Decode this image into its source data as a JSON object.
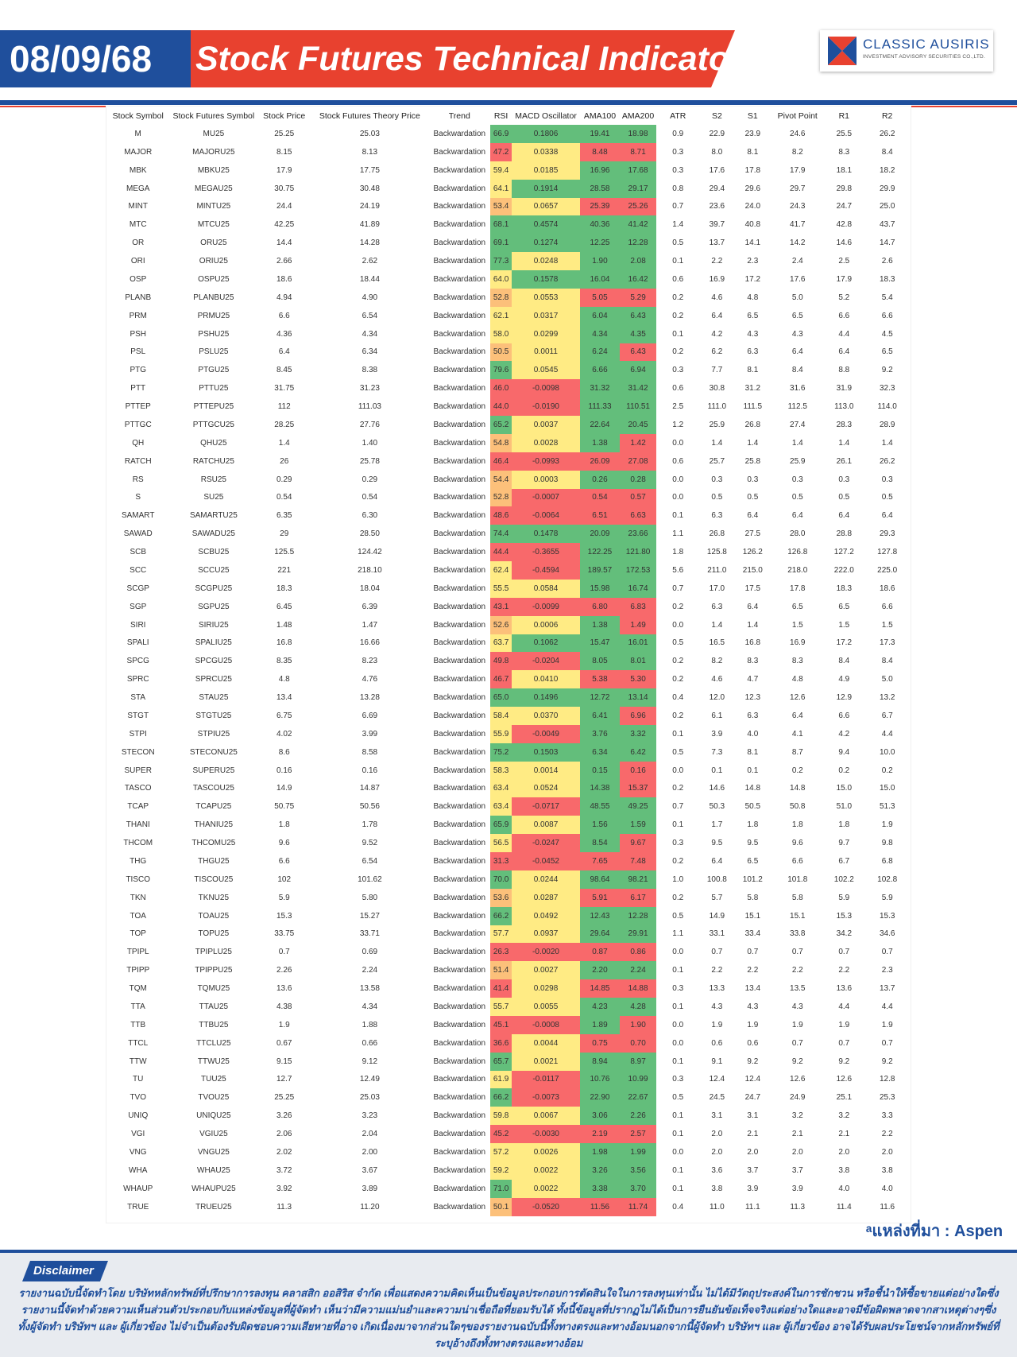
{
  "header": {
    "date": "08/09/68",
    "title": "Stock Futures Technical Indicator",
    "logo_name": "CLASSIC AUSIRIS",
    "logo_sub": "INVESTMENT ADVISORY SECURITIES CO.,LTD.",
    "colors": {
      "blue": "#1f4f9c",
      "red": "#e8412f"
    }
  },
  "table": {
    "columns": [
      "Stock Symbol",
      "Stock Futures Symbol",
      "Stock Price",
      "Stock Futures Theory Price",
      "Trend",
      "RSI",
      "MACD Oscillator",
      "AMA100",
      "AMA200",
      "ATR",
      "S2",
      "S1",
      "Pivot Point",
      "R1",
      "R2"
    ],
    "rows": [
      [
        "M",
        "MU25",
        "25.25",
        "25.03",
        "Backwardation",
        "66.9",
        "0.1806",
        "19.41",
        "18.98",
        "0.9",
        "22.9",
        "23.9",
        "24.6",
        "25.5",
        "26.2"
      ],
      [
        "MAJOR",
        "MAJORU25",
        "8.15",
        "8.13",
        "Backwardation",
        "47.2",
        "0.0338",
        "8.48",
        "8.71",
        "0.3",
        "8.0",
        "8.1",
        "8.2",
        "8.3",
        "8.4"
      ],
      [
        "MBK",
        "MBKU25",
        "17.9",
        "17.75",
        "Backwardation",
        "59.4",
        "0.0185",
        "16.96",
        "17.68",
        "0.3",
        "17.6",
        "17.8",
        "17.9",
        "18.1",
        "18.2"
      ],
      [
        "MEGA",
        "MEGAU25",
        "30.75",
        "30.48",
        "Backwardation",
        "64.1",
        "0.1914",
        "28.58",
        "29.17",
        "0.8",
        "29.4",
        "29.6",
        "29.7",
        "29.8",
        "29.9"
      ],
      [
        "MINT",
        "MINTU25",
        "24.4",
        "24.19",
        "Backwardation",
        "53.4",
        "0.0657",
        "25.39",
        "25.26",
        "0.7",
        "23.6",
        "24.0",
        "24.3",
        "24.7",
        "25.0"
      ],
      [
        "MTC",
        "MTCU25",
        "42.25",
        "41.89",
        "Backwardation",
        "68.1",
        "0.4574",
        "40.36",
        "41.42",
        "1.4",
        "39.7",
        "40.8",
        "41.7",
        "42.8",
        "43.7"
      ],
      [
        "OR",
        "ORU25",
        "14.4",
        "14.28",
        "Backwardation",
        "69.1",
        "0.1274",
        "12.25",
        "12.28",
        "0.5",
        "13.7",
        "14.1",
        "14.2",
        "14.6",
        "14.7"
      ],
      [
        "ORI",
        "ORIU25",
        "2.66",
        "2.62",
        "Backwardation",
        "77.3",
        "0.0248",
        "1.90",
        "2.08",
        "0.1",
        "2.2",
        "2.3",
        "2.4",
        "2.5",
        "2.6"
      ],
      [
        "OSP",
        "OSPU25",
        "18.6",
        "18.44",
        "Backwardation",
        "64.0",
        "0.1578",
        "16.04",
        "16.42",
        "0.6",
        "16.9",
        "17.2",
        "17.6",
        "17.9",
        "18.3"
      ],
      [
        "PLANB",
        "PLANBU25",
        "4.94",
        "4.90",
        "Backwardation",
        "52.8",
        "0.0553",
        "5.05",
        "5.29",
        "0.2",
        "4.6",
        "4.8",
        "5.0",
        "5.2",
        "5.4"
      ],
      [
        "PRM",
        "PRMU25",
        "6.6",
        "6.54",
        "Backwardation",
        "62.1",
        "0.0317",
        "6.04",
        "6.43",
        "0.2",
        "6.4",
        "6.5",
        "6.5",
        "6.6",
        "6.6"
      ],
      [
        "PSH",
        "PSHU25",
        "4.36",
        "4.34",
        "Backwardation",
        "58.0",
        "0.0299",
        "4.34",
        "4.35",
        "0.1",
        "4.2",
        "4.3",
        "4.3",
        "4.4",
        "4.5"
      ],
      [
        "PSL",
        "PSLU25",
        "6.4",
        "6.34",
        "Backwardation",
        "50.5",
        "0.0011",
        "6.24",
        "6.43",
        "0.2",
        "6.2",
        "6.3",
        "6.4",
        "6.4",
        "6.5"
      ],
      [
        "PTG",
        "PTGU25",
        "8.45",
        "8.38",
        "Backwardation",
        "79.6",
        "0.0545",
        "6.66",
        "6.94",
        "0.3",
        "7.7",
        "8.1",
        "8.4",
        "8.8",
        "9.2"
      ],
      [
        "PTT",
        "PTTU25",
        "31.75",
        "31.23",
        "Backwardation",
        "46.0",
        "-0.0098",
        "31.32",
        "31.42",
        "0.6",
        "30.8",
        "31.2",
        "31.6",
        "31.9",
        "32.3"
      ],
      [
        "PTTEP",
        "PTTEPU25",
        "112",
        "111.03",
        "Backwardation",
        "44.0",
        "-0.0190",
        "111.33",
        "110.51",
        "2.5",
        "111.0",
        "111.5",
        "112.5",
        "113.0",
        "114.0"
      ],
      [
        "PTTGC",
        "PTTGCU25",
        "28.25",
        "27.76",
        "Backwardation",
        "65.2",
        "0.0037",
        "22.64",
        "20.45",
        "1.2",
        "25.9",
        "26.8",
        "27.4",
        "28.3",
        "28.9"
      ],
      [
        "QH",
        "QHU25",
        "1.4",
        "1.40",
        "Backwardation",
        "54.8",
        "0.0028",
        "1.38",
        "1.42",
        "0.0",
        "1.4",
        "1.4",
        "1.4",
        "1.4",
        "1.4"
      ],
      [
        "RATCH",
        "RATCHU25",
        "26",
        "25.78",
        "Backwardation",
        "46.4",
        "-0.0993",
        "26.09",
        "27.08",
        "0.6",
        "25.7",
        "25.8",
        "25.9",
        "26.1",
        "26.2"
      ],
      [
        "RS",
        "RSU25",
        "0.29",
        "0.29",
        "Backwardation",
        "54.4",
        "0.0003",
        "0.26",
        "0.28",
        "0.0",
        "0.3",
        "0.3",
        "0.3",
        "0.3",
        "0.3"
      ],
      [
        "S",
        "SU25",
        "0.54",
        "0.54",
        "Backwardation",
        "52.8",
        "-0.0007",
        "0.54",
        "0.57",
        "0.0",
        "0.5",
        "0.5",
        "0.5",
        "0.5",
        "0.5"
      ],
      [
        "SAMART",
        "SAMARTU25",
        "6.35",
        "6.30",
        "Backwardation",
        "48.6",
        "-0.0064",
        "6.51",
        "6.63",
        "0.1",
        "6.3",
        "6.4",
        "6.4",
        "6.4",
        "6.4"
      ],
      [
        "SAWAD",
        "SAWADU25",
        "29",
        "28.50",
        "Backwardation",
        "74.4",
        "0.1478",
        "20.09",
        "23.66",
        "1.1",
        "26.8",
        "27.5",
        "28.0",
        "28.8",
        "29.3"
      ],
      [
        "SCB",
        "SCBU25",
        "125.5",
        "124.42",
        "Backwardation",
        "44.4",
        "-0.3655",
        "122.25",
        "121.80",
        "1.8",
        "125.8",
        "126.2",
        "126.8",
        "127.2",
        "127.8"
      ],
      [
        "SCC",
        "SCCU25",
        "221",
        "218.10",
        "Backwardation",
        "62.4",
        "-0.4594",
        "189.57",
        "172.53",
        "5.6",
        "211.0",
        "215.0",
        "218.0",
        "222.0",
        "225.0"
      ],
      [
        "SCGP",
        "SCGPU25",
        "18.3",
        "18.04",
        "Backwardation",
        "55.5",
        "0.0584",
        "15.98",
        "16.74",
        "0.7",
        "17.0",
        "17.5",
        "17.8",
        "18.3",
        "18.6"
      ],
      [
        "SGP",
        "SGPU25",
        "6.45",
        "6.39",
        "Backwardation",
        "43.1",
        "-0.0099",
        "6.80",
        "6.83",
        "0.2",
        "6.3",
        "6.4",
        "6.5",
        "6.5",
        "6.6"
      ],
      [
        "SIRI",
        "SIRIU25",
        "1.48",
        "1.47",
        "Backwardation",
        "52.6",
        "0.0006",
        "1.38",
        "1.49",
        "0.0",
        "1.4",
        "1.4",
        "1.5",
        "1.5",
        "1.5"
      ],
      [
        "SPALI",
        "SPALIU25",
        "16.8",
        "16.66",
        "Backwardation",
        "63.7",
        "0.1062",
        "15.47",
        "16.01",
        "0.5",
        "16.5",
        "16.8",
        "16.9",
        "17.2",
        "17.3"
      ],
      [
        "SPCG",
        "SPCGU25",
        "8.35",
        "8.23",
        "Backwardation",
        "49.8",
        "-0.0204",
        "8.05",
        "8.01",
        "0.2",
        "8.2",
        "8.3",
        "8.3",
        "8.4",
        "8.4"
      ],
      [
        "SPRC",
        "SPRCU25",
        "4.8",
        "4.76",
        "Backwardation",
        "46.7",
        "0.0410",
        "5.38",
        "5.30",
        "0.2",
        "4.6",
        "4.7",
        "4.8",
        "4.9",
        "5.0"
      ],
      [
        "STA",
        "STAU25",
        "13.4",
        "13.28",
        "Backwardation",
        "65.0",
        "0.1496",
        "12.72",
        "13.14",
        "0.4",
        "12.0",
        "12.3",
        "12.6",
        "12.9",
        "13.2"
      ],
      [
        "STGT",
        "STGTU25",
        "6.75",
        "6.69",
        "Backwardation",
        "58.4",
        "0.0370",
        "6.41",
        "6.96",
        "0.2",
        "6.1",
        "6.3",
        "6.4",
        "6.6",
        "6.7"
      ],
      [
        "STPI",
        "STPIU25",
        "4.02",
        "3.99",
        "Backwardation",
        "55.9",
        "-0.0049",
        "3.76",
        "3.32",
        "0.1",
        "3.9",
        "4.0",
        "4.1",
        "4.2",
        "4.4"
      ],
      [
        "STECON",
        "STECONU25",
        "8.6",
        "8.58",
        "Backwardation",
        "75.2",
        "0.1503",
        "6.34",
        "6.42",
        "0.5",
        "7.3",
        "8.1",
        "8.7",
        "9.4",
        "10.0"
      ],
      [
        "SUPER",
        "SUPERU25",
        "0.16",
        "0.16",
        "Backwardation",
        "58.3",
        "0.0014",
        "0.15",
        "0.16",
        "0.0",
        "0.1",
        "0.1",
        "0.2",
        "0.2",
        "0.2"
      ],
      [
        "TASCO",
        "TASCOU25",
        "14.9",
        "14.87",
        "Backwardation",
        "63.4",
        "0.0524",
        "14.38",
        "15.37",
        "0.2",
        "14.6",
        "14.8",
        "14.8",
        "15.0",
        "15.0"
      ],
      [
        "TCAP",
        "TCAPU25",
        "50.75",
        "50.56",
        "Backwardation",
        "63.4",
        "-0.0717",
        "48.55",
        "49.25",
        "0.7",
        "50.3",
        "50.5",
        "50.8",
        "51.0",
        "51.3"
      ],
      [
        "THANI",
        "THANIU25",
        "1.8",
        "1.78",
        "Backwardation",
        "65.9",
        "0.0087",
        "1.56",
        "1.59",
        "0.1",
        "1.7",
        "1.8",
        "1.8",
        "1.8",
        "1.9"
      ],
      [
        "THCOM",
        "THCOMU25",
        "9.6",
        "9.52",
        "Backwardation",
        "56.5",
        "-0.0247",
        "8.54",
        "9.67",
        "0.3",
        "9.5",
        "9.5",
        "9.6",
        "9.7",
        "9.8"
      ],
      [
        "THG",
        "THGU25",
        "6.6",
        "6.54",
        "Backwardation",
        "31.3",
        "-0.0452",
        "7.65",
        "7.48",
        "0.2",
        "6.4",
        "6.5",
        "6.6",
        "6.7",
        "6.8"
      ],
      [
        "TISCO",
        "TISCOU25",
        "102",
        "101.62",
        "Backwardation",
        "70.0",
        "0.0244",
        "98.64",
        "98.21",
        "1.0",
        "100.8",
        "101.2",
        "101.8",
        "102.2",
        "102.8"
      ],
      [
        "TKN",
        "TKNU25",
        "5.9",
        "5.80",
        "Backwardation",
        "53.6",
        "0.0287",
        "5.91",
        "6.17",
        "0.2",
        "5.7",
        "5.8",
        "5.8",
        "5.9",
        "5.9"
      ],
      [
        "TOA",
        "TOAU25",
        "15.3",
        "15.27",
        "Backwardation",
        "66.2",
        "0.0492",
        "12.43",
        "12.28",
        "0.5",
        "14.9",
        "15.1",
        "15.1",
        "15.3",
        "15.3"
      ],
      [
        "TOP",
        "TOPU25",
        "33.75",
        "33.71",
        "Backwardation",
        "57.7",
        "0.0937",
        "29.64",
        "29.91",
        "1.1",
        "33.1",
        "33.4",
        "33.8",
        "34.2",
        "34.6"
      ],
      [
        "TPIPL",
        "TPIPLU25",
        "0.7",
        "0.69",
        "Backwardation",
        "26.3",
        "-0.0020",
        "0.87",
        "0.86",
        "0.0",
        "0.7",
        "0.7",
        "0.7",
        "0.7",
        "0.7"
      ],
      [
        "TPIPP",
        "TPIPPU25",
        "2.26",
        "2.24",
        "Backwardation",
        "51.4",
        "0.0027",
        "2.20",
        "2.24",
        "0.1",
        "2.2",
        "2.2",
        "2.2",
        "2.2",
        "2.3"
      ],
      [
        "TQM",
        "TQMU25",
        "13.6",
        "13.58",
        "Backwardation",
        "41.4",
        "0.0298",
        "14.85",
        "14.88",
        "0.3",
        "13.3",
        "13.4",
        "13.5",
        "13.6",
        "13.7"
      ],
      [
        "TTA",
        "TTAU25",
        "4.38",
        "4.34",
        "Backwardation",
        "55.7",
        "0.0055",
        "4.23",
        "4.28",
        "0.1",
        "4.3",
        "4.3",
        "4.3",
        "4.4",
        "4.4"
      ],
      [
        "TTB",
        "TTBU25",
        "1.9",
        "1.88",
        "Backwardation",
        "45.1",
        "-0.0008",
        "1.89",
        "1.90",
        "0.0",
        "1.9",
        "1.9",
        "1.9",
        "1.9",
        "1.9"
      ],
      [
        "TTCL",
        "TTCLU25",
        "0.67",
        "0.66",
        "Backwardation",
        "36.6",
        "0.0044",
        "0.75",
        "0.70",
        "0.0",
        "0.6",
        "0.6",
        "0.7",
        "0.7",
        "0.7"
      ],
      [
        "TTW",
        "TTWU25",
        "9.15",
        "9.12",
        "Backwardation",
        "65.7",
        "0.0021",
        "8.94",
        "8.97",
        "0.1",
        "9.1",
        "9.2",
        "9.2",
        "9.2",
        "9.2"
      ],
      [
        "TU",
        "TUU25",
        "12.7",
        "12.49",
        "Backwardation",
        "61.9",
        "-0.0117",
        "10.76",
        "10.99",
        "0.3",
        "12.4",
        "12.4",
        "12.6",
        "12.6",
        "12.8"
      ],
      [
        "TVO",
        "TVOU25",
        "25.25",
        "25.03",
        "Backwardation",
        "66.2",
        "-0.0073",
        "22.90",
        "22.67",
        "0.5",
        "24.5",
        "24.7",
        "24.9",
        "25.1",
        "25.3"
      ],
      [
        "UNIQ",
        "UNIQU25",
        "3.26",
        "3.23",
        "Backwardation",
        "59.8",
        "0.0067",
        "3.06",
        "2.26",
        "0.1",
        "3.1",
        "3.1",
        "3.2",
        "3.2",
        "3.3"
      ],
      [
        "VGI",
        "VGIU25",
        "2.06",
        "2.04",
        "Backwardation",
        "45.2",
        "-0.0030",
        "2.19",
        "2.57",
        "0.1",
        "2.0",
        "2.1",
        "2.1",
        "2.1",
        "2.2"
      ],
      [
        "VNG",
        "VNGU25",
        "2.02",
        "2.00",
        "Backwardation",
        "57.2",
        "0.0026",
        "1.98",
        "1.99",
        "0.0",
        "2.0",
        "2.0",
        "2.0",
        "2.0",
        "2.0"
      ],
      [
        "WHA",
        "WHAU25",
        "3.72",
        "3.67",
        "Backwardation",
        "59.2",
        "0.0022",
        "3.26",
        "3.56",
        "0.1",
        "3.6",
        "3.7",
        "3.7",
        "3.8",
        "3.8"
      ],
      [
        "WHAUP",
        "WHAUPU25",
        "3.92",
        "3.89",
        "Backwardation",
        "71.0",
        "0.0022",
        "3.38",
        "3.70",
        "0.1",
        "3.8",
        "3.9",
        "3.9",
        "4.0",
        "4.0"
      ],
      [
        "TRUE",
        "TRUEU25",
        "11.3",
        "11.20",
        "Backwardation",
        "50.1",
        "-0.0520",
        "11.56",
        "11.74",
        "0.4",
        "11.0",
        "11.1",
        "11.3",
        "11.4",
        "11.6"
      ]
    ],
    "heat_colors": {
      "green": "#63be7b",
      "yellow": "#ffeb84",
      "red": "#f8696b"
    }
  },
  "source": "ᵃแหล่งที่มา : Aspen",
  "disclaimer": {
    "label": "Disclaimer",
    "text": "รายงานฉบับนี้จัดทำโดย บริษัทหลักทรัพย์ที่ปรึกษาการลงทุน คลาสสิก ออสิริส จำกัด เพื่อแสดงความคิดเห็นเป็นข้อมูลประกอบการตัดสินใจในการลงทุนเท่านั้น ไม่ได้มีวัตถุประสงค์ในการชักชวน หรือชี้นำให้ซื้อขายแต่อย่างใดซึ่งรายงานนี้จัดทำด้วยความเห็นส่วนตัวประกอบกับแหล่งข้อมูลที่ผู้จัดทำ เห็นว่ามีความแม่นยำและความน่าเชื่อถือที่ยอมรับได้ ทั้งนี้ข้อมูลที่ปรากฏไม่ได้เป็นการยืนยันข้อเท็จจริงแต่อย่างใดและอาจมีข้อผิดพลาดจากสาเหตุต่างๆซึ่งทั้งผู้จัดทำ บริษัทฯ และ ผู้เกี่ยวข้อง ไม่จำเป็นต้องรับผิดชอบความเสียหายที่อาจ เกิดเนื่องมาจากส่วนใดๆของรายงานฉบับนี้ทั้งทางตรงและทางอ้อมนอกจากนี้ผู้จัดทำ บริษัทฯ และ ผู้เกี่ยวข้อง อาจได้รับผลประโยชน์จากหลักทรัพย์ที่ระบุอ้างถึงทั้งทางตรงและทางอ้อม"
  }
}
